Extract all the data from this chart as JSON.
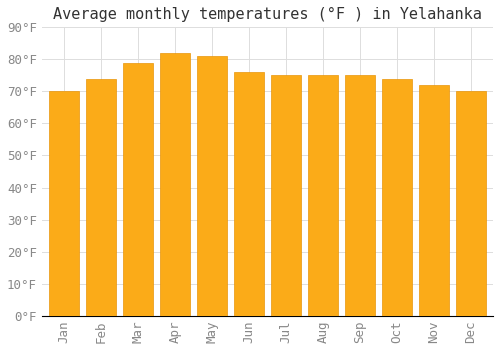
{
  "title": "Average monthly temperatures (°F ) in Yelahanka",
  "months": [
    "Jan",
    "Feb",
    "Mar",
    "Apr",
    "May",
    "Jun",
    "Jul",
    "Aug",
    "Sep",
    "Oct",
    "Nov",
    "Dec"
  ],
  "values": [
    70,
    74,
    79,
    82,
    81,
    76,
    75,
    75,
    75,
    74,
    72,
    70
  ],
  "bar_color": "#FBAB18",
  "bar_edge_color": "#E8960A",
  "background_color": "#FFFFFF",
  "grid_color": "#DDDDDD",
  "ylim": [
    0,
    90
  ],
  "yticks": [
    0,
    10,
    20,
    30,
    40,
    50,
    60,
    70,
    80,
    90
  ],
  "title_fontsize": 11,
  "tick_fontsize": 9,
  "title_font_family": "monospace"
}
